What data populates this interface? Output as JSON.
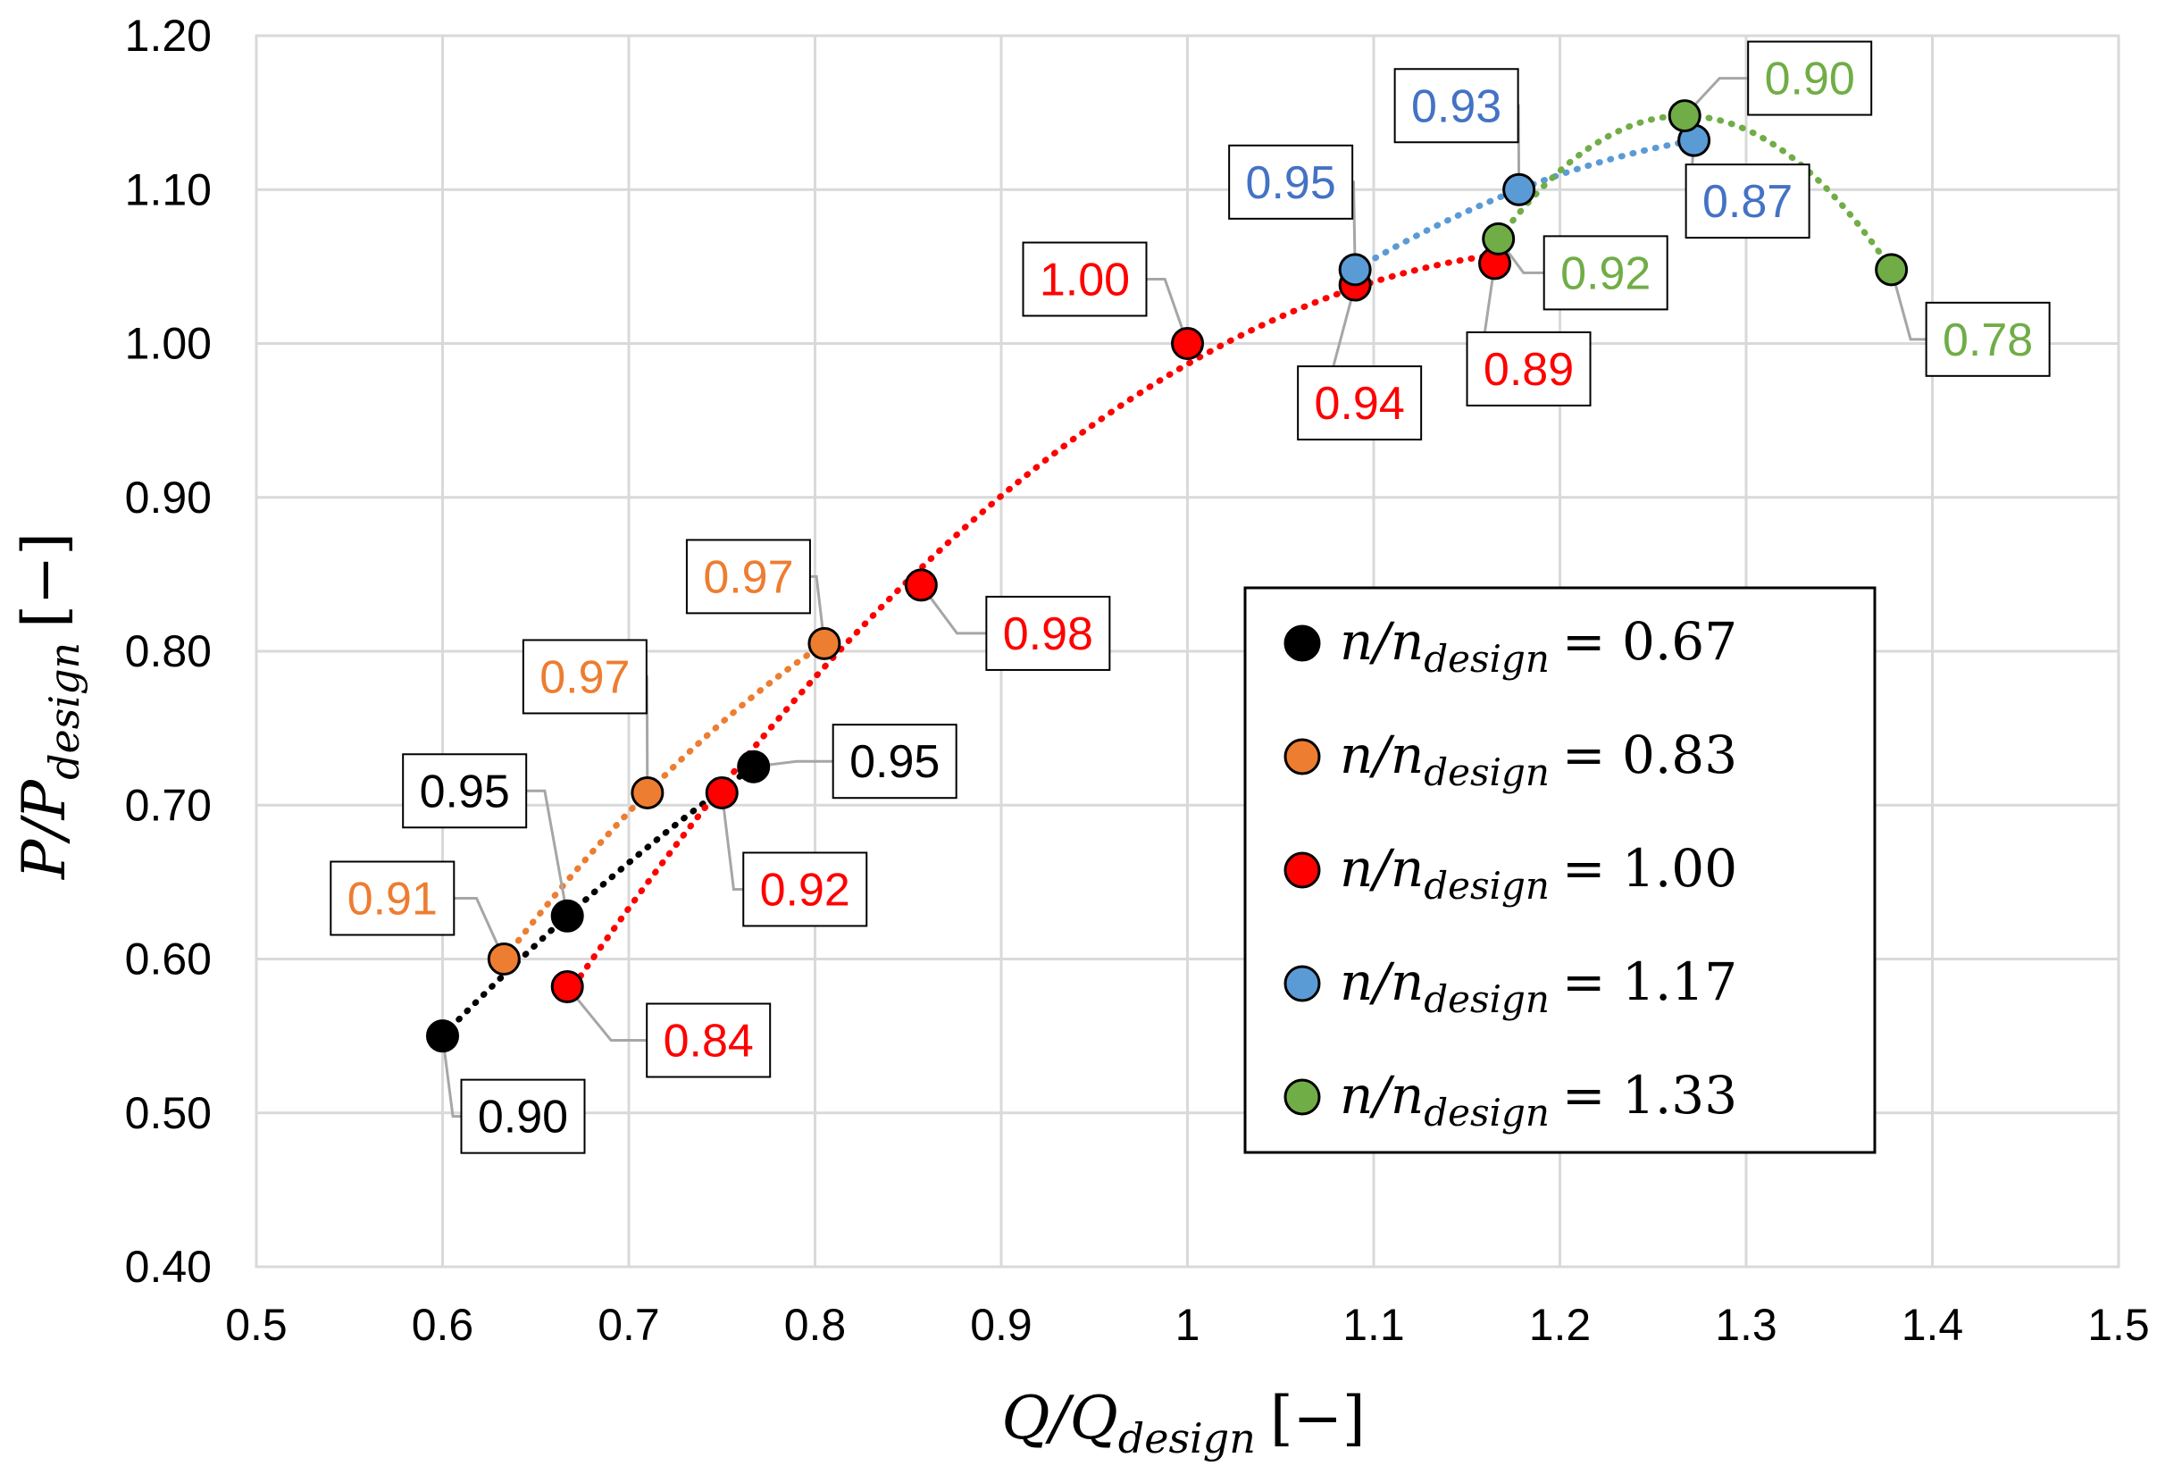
{
  "chart_data": {
    "type": "scatter",
    "title": "",
    "xlabel": "Q/Q_design [−]",
    "ylabel": "P/P_design [−]",
    "xlabel_parts": {
      "main": "Q/Q",
      "sub": "design",
      "unit": "[−]"
    },
    "ylabel_parts": {
      "main": "P/P",
      "sub": "design",
      "unit": "[−]"
    },
    "xlim": [
      0.5,
      1.5
    ],
    "ylim": [
      0.4,
      1.2
    ],
    "xticks": [
      "0.5",
      "0.6",
      "0.7",
      "0.8",
      "0.9",
      "1",
      "1.1",
      "1.2",
      "1.3",
      "1.4",
      "1.5"
    ],
    "yticks": [
      "0.40",
      "0.50",
      "0.60",
      "0.70",
      "0.80",
      "0.90",
      "1.00",
      "1.10",
      "1.20"
    ],
    "grid": true,
    "legend_position": "lower-right",
    "trendline_style": "dotted",
    "series": [
      {
        "name": "n/n_design = 0.67",
        "legend": {
          "main": "n/n",
          "sub": "design",
          "value": "= 0.67"
        },
        "color": "#000000",
        "label_color": "#000000",
        "points": [
          {
            "x": 0.6,
            "y": 0.55,
            "label": "0.90"
          },
          {
            "x": 0.667,
            "y": 0.628,
            "label": "0.95"
          },
          {
            "x": 0.767,
            "y": 0.725,
            "label": "0.95"
          }
        ]
      },
      {
        "name": "n/n_design = 0.83",
        "legend": {
          "main": "n/n",
          "sub": "design",
          "value": "= 0.83"
        },
        "color": "#ED7D31",
        "label_color": "#ED7D31",
        "points": [
          {
            "x": 0.633,
            "y": 0.6,
            "label": "0.91"
          },
          {
            "x": 0.71,
            "y": 0.708,
            "label": "0.97"
          },
          {
            "x": 0.805,
            "y": 0.805,
            "label": "0.97"
          }
        ]
      },
      {
        "name": "n/n_design = 1.00",
        "legend": {
          "main": "n/n",
          "sub": "design",
          "value": "= 1.00"
        },
        "color": "#FF0000",
        "label_color": "#FF0000",
        "points": [
          {
            "x": 0.667,
            "y": 0.582,
            "label": "0.84"
          },
          {
            "x": 0.75,
            "y": 0.708,
            "label": "0.92"
          },
          {
            "x": 0.857,
            "y": 0.843,
            "label": "0.98"
          },
          {
            "x": 1.0,
            "y": 1.0,
            "label": "1.00"
          },
          {
            "x": 1.09,
            "y": 1.038,
            "label": "0.94"
          },
          {
            "x": 1.165,
            "y": 1.052,
            "label": "0.89"
          }
        ]
      },
      {
        "name": "n/n_design = 1.17",
        "legend": {
          "main": "n/n",
          "sub": "design",
          "value": "= 1.17"
        },
        "color": "#5B9BD5",
        "label_color": "#4472C4",
        "points": [
          {
            "x": 1.09,
            "y": 1.048,
            "label": "0.95"
          },
          {
            "x": 1.178,
            "y": 1.1,
            "label": "0.93"
          },
          {
            "x": 1.272,
            "y": 1.132,
            "label": "0.87"
          }
        ]
      },
      {
        "name": "n/n_design = 1.33",
        "legend": {
          "main": "n/n",
          "sub": "design",
          "value": "= 1.33"
        },
        "color": "#70AD47",
        "label_color": "#70AD47",
        "points": [
          {
            "x": 1.167,
            "y": 1.068,
            "label": "0.92"
          },
          {
            "x": 1.267,
            "y": 1.148,
            "label": "0.90"
          },
          {
            "x": 1.378,
            "y": 1.048,
            "label": "0.78"
          }
        ]
      }
    ]
  }
}
